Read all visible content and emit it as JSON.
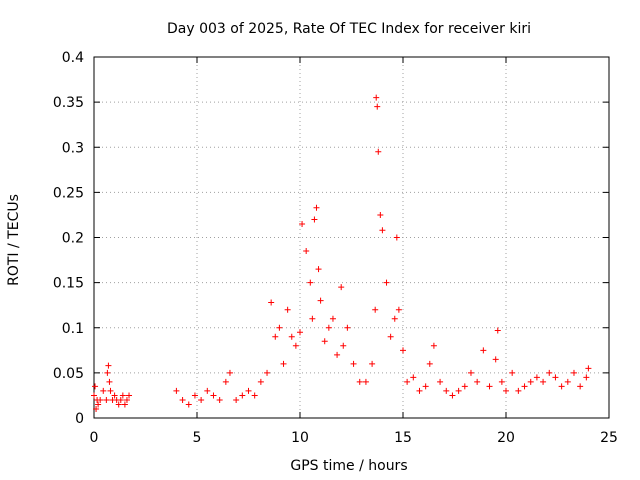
{
  "chart_data": {
    "type": "scatter",
    "title": "Day 003 of 2025, Rate Of TEC Index for receiver kiri",
    "xlabel": "GPS time / hours",
    "ylabel": "ROTI / TECUs",
    "xlim": [
      0,
      25
    ],
    "ylim": [
      0,
      0.4
    ],
    "xticks": [
      0,
      5,
      10,
      15,
      20,
      25
    ],
    "xtick_labels": [
      "0",
      "5",
      "10",
      "15",
      "20",
      "25"
    ],
    "yticks": [
      0,
      0.05,
      0.1,
      0.15,
      0.2,
      0.25,
      0.3,
      0.35,
      0.4
    ],
    "ytick_labels": [
      "0",
      "0.05",
      "0.1",
      "0.15",
      "0.2",
      "0.25",
      "0.3",
      "0.35",
      "0.4"
    ],
    "grid": true,
    "marker": "+",
    "color": "#ff0000",
    "series": [
      {
        "name": "ROTI",
        "x": [
          0.0,
          0.05,
          0.1,
          0.15,
          0.2,
          0.3,
          0.45,
          0.6,
          0.65,
          0.7,
          0.75,
          0.8,
          0.9,
          1.0,
          1.1,
          1.2,
          1.3,
          1.4,
          1.5,
          1.6,
          1.7,
          4.0,
          4.3,
          4.6,
          4.9,
          5.2,
          5.5,
          5.8,
          6.1,
          6.4,
          6.6,
          6.9,
          7.2,
          7.5,
          7.8,
          8.1,
          8.4,
          8.6,
          8.8,
          9.0,
          9.2,
          9.4,
          9.6,
          9.8,
          10.0,
          10.1,
          10.3,
          10.5,
          10.6,
          10.7,
          10.8,
          10.9,
          11.0,
          11.2,
          11.4,
          11.6,
          11.8,
          12.0,
          12.1,
          12.3,
          12.6,
          12.9,
          13.2,
          13.5,
          13.65,
          13.7,
          13.75,
          13.8,
          13.9,
          14.0,
          14.2,
          14.4,
          14.6,
          14.7,
          14.8,
          15.0,
          15.2,
          15.5,
          15.8,
          16.1,
          16.3,
          16.5,
          16.8,
          17.1,
          17.4,
          17.7,
          18.0,
          18.3,
          18.6,
          18.9,
          19.2,
          19.5,
          19.6,
          19.8,
          20.0,
          20.3,
          20.6,
          20.9,
          21.2,
          21.5,
          21.8,
          22.1,
          22.4,
          22.7,
          23.0,
          23.3,
          23.6,
          23.9,
          24.0
        ],
        "y": [
          0.025,
          0.035,
          0.01,
          0.02,
          0.015,
          0.02,
          0.03,
          0.02,
          0.05,
          0.058,
          0.04,
          0.03,
          0.02,
          0.025,
          0.02,
          0.015,
          0.02,
          0.025,
          0.015,
          0.02,
          0.025,
          0.03,
          0.02,
          0.015,
          0.025,
          0.02,
          0.03,
          0.025,
          0.02,
          0.04,
          0.05,
          0.02,
          0.025,
          0.03,
          0.025,
          0.04,
          0.05,
          0.128,
          0.09,
          0.1,
          0.06,
          0.12,
          0.09,
          0.08,
          0.095,
          0.215,
          0.185,
          0.15,
          0.11,
          0.22,
          0.233,
          0.165,
          0.13,
          0.085,
          0.1,
          0.11,
          0.07,
          0.145,
          0.08,
          0.1,
          0.06,
          0.04,
          0.04,
          0.06,
          0.12,
          0.355,
          0.345,
          0.295,
          0.225,
          0.208,
          0.15,
          0.09,
          0.11,
          0.2,
          0.12,
          0.075,
          0.04,
          0.045,
          0.03,
          0.035,
          0.06,
          0.08,
          0.04,
          0.03,
          0.025,
          0.03,
          0.035,
          0.05,
          0.04,
          0.075,
          0.035,
          0.065,
          0.097,
          0.04,
          0.03,
          0.05,
          0.03,
          0.035,
          0.04,
          0.045,
          0.04,
          0.05,
          0.045,
          0.035,
          0.04,
          0.05,
          0.035,
          0.045,
          0.055
        ]
      }
    ]
  }
}
